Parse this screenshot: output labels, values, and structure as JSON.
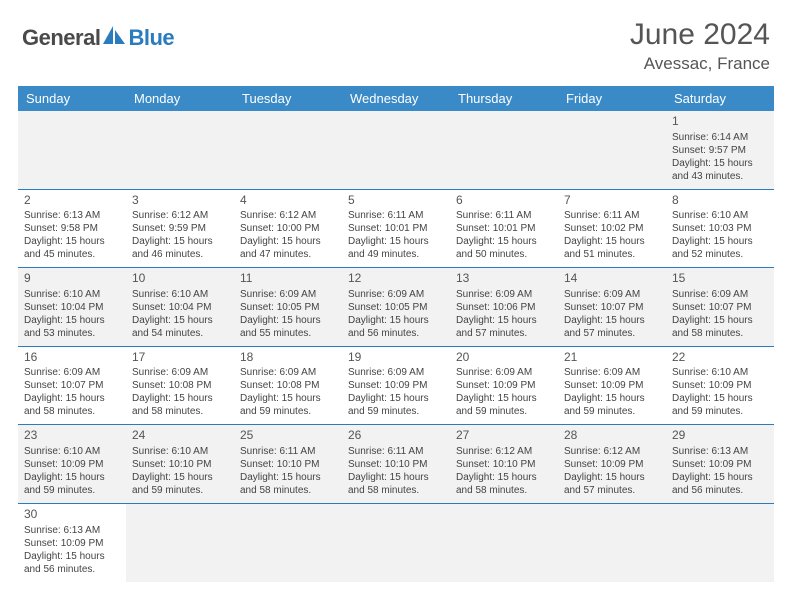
{
  "logo": {
    "text1": "General",
    "text2": "Blue"
  },
  "title": "June 2024",
  "location": "Avessac, France",
  "colors": {
    "header_bg": "#3a8ac8",
    "header_text": "#ffffff",
    "border": "#2b7bbf",
    "shade": "#f2f2f2",
    "logo_blue": "#2b7bbf",
    "logo_gray": "#4a4a4a"
  },
  "weekdays": [
    "Sunday",
    "Monday",
    "Tuesday",
    "Wednesday",
    "Thursday",
    "Friday",
    "Saturday"
  ],
  "weeks": [
    [
      null,
      null,
      null,
      null,
      null,
      null,
      {
        "n": "1",
        "sr": "Sunrise: 6:14 AM",
        "ss": "Sunset: 9:57 PM",
        "d1": "Daylight: 15 hours",
        "d2": "and 43 minutes."
      }
    ],
    [
      {
        "n": "2",
        "sr": "Sunrise: 6:13 AM",
        "ss": "Sunset: 9:58 PM",
        "d1": "Daylight: 15 hours",
        "d2": "and 45 minutes."
      },
      {
        "n": "3",
        "sr": "Sunrise: 6:12 AM",
        "ss": "Sunset: 9:59 PM",
        "d1": "Daylight: 15 hours",
        "d2": "and 46 minutes."
      },
      {
        "n": "4",
        "sr": "Sunrise: 6:12 AM",
        "ss": "Sunset: 10:00 PM",
        "d1": "Daylight: 15 hours",
        "d2": "and 47 minutes."
      },
      {
        "n": "5",
        "sr": "Sunrise: 6:11 AM",
        "ss": "Sunset: 10:01 PM",
        "d1": "Daylight: 15 hours",
        "d2": "and 49 minutes."
      },
      {
        "n": "6",
        "sr": "Sunrise: 6:11 AM",
        "ss": "Sunset: 10:01 PM",
        "d1": "Daylight: 15 hours",
        "d2": "and 50 minutes."
      },
      {
        "n": "7",
        "sr": "Sunrise: 6:11 AM",
        "ss": "Sunset: 10:02 PM",
        "d1": "Daylight: 15 hours",
        "d2": "and 51 minutes."
      },
      {
        "n": "8",
        "sr": "Sunrise: 6:10 AM",
        "ss": "Sunset: 10:03 PM",
        "d1": "Daylight: 15 hours",
        "d2": "and 52 minutes."
      }
    ],
    [
      {
        "n": "9",
        "sr": "Sunrise: 6:10 AM",
        "ss": "Sunset: 10:04 PM",
        "d1": "Daylight: 15 hours",
        "d2": "and 53 minutes."
      },
      {
        "n": "10",
        "sr": "Sunrise: 6:10 AM",
        "ss": "Sunset: 10:04 PM",
        "d1": "Daylight: 15 hours",
        "d2": "and 54 minutes."
      },
      {
        "n": "11",
        "sr": "Sunrise: 6:09 AM",
        "ss": "Sunset: 10:05 PM",
        "d1": "Daylight: 15 hours",
        "d2": "and 55 minutes."
      },
      {
        "n": "12",
        "sr": "Sunrise: 6:09 AM",
        "ss": "Sunset: 10:05 PM",
        "d1": "Daylight: 15 hours",
        "d2": "and 56 minutes."
      },
      {
        "n": "13",
        "sr": "Sunrise: 6:09 AM",
        "ss": "Sunset: 10:06 PM",
        "d1": "Daylight: 15 hours",
        "d2": "and 57 minutes."
      },
      {
        "n": "14",
        "sr": "Sunrise: 6:09 AM",
        "ss": "Sunset: 10:07 PM",
        "d1": "Daylight: 15 hours",
        "d2": "and 57 minutes."
      },
      {
        "n": "15",
        "sr": "Sunrise: 6:09 AM",
        "ss": "Sunset: 10:07 PM",
        "d1": "Daylight: 15 hours",
        "d2": "and 58 minutes."
      }
    ],
    [
      {
        "n": "16",
        "sr": "Sunrise: 6:09 AM",
        "ss": "Sunset: 10:07 PM",
        "d1": "Daylight: 15 hours",
        "d2": "and 58 minutes."
      },
      {
        "n": "17",
        "sr": "Sunrise: 6:09 AM",
        "ss": "Sunset: 10:08 PM",
        "d1": "Daylight: 15 hours",
        "d2": "and 58 minutes."
      },
      {
        "n": "18",
        "sr": "Sunrise: 6:09 AM",
        "ss": "Sunset: 10:08 PM",
        "d1": "Daylight: 15 hours",
        "d2": "and 59 minutes."
      },
      {
        "n": "19",
        "sr": "Sunrise: 6:09 AM",
        "ss": "Sunset: 10:09 PM",
        "d1": "Daylight: 15 hours",
        "d2": "and 59 minutes."
      },
      {
        "n": "20",
        "sr": "Sunrise: 6:09 AM",
        "ss": "Sunset: 10:09 PM",
        "d1": "Daylight: 15 hours",
        "d2": "and 59 minutes."
      },
      {
        "n": "21",
        "sr": "Sunrise: 6:09 AM",
        "ss": "Sunset: 10:09 PM",
        "d1": "Daylight: 15 hours",
        "d2": "and 59 minutes."
      },
      {
        "n": "22",
        "sr": "Sunrise: 6:10 AM",
        "ss": "Sunset: 10:09 PM",
        "d1": "Daylight: 15 hours",
        "d2": "and 59 minutes."
      }
    ],
    [
      {
        "n": "23",
        "sr": "Sunrise: 6:10 AM",
        "ss": "Sunset: 10:09 PM",
        "d1": "Daylight: 15 hours",
        "d2": "and 59 minutes."
      },
      {
        "n": "24",
        "sr": "Sunrise: 6:10 AM",
        "ss": "Sunset: 10:10 PM",
        "d1": "Daylight: 15 hours",
        "d2": "and 59 minutes."
      },
      {
        "n": "25",
        "sr": "Sunrise: 6:11 AM",
        "ss": "Sunset: 10:10 PM",
        "d1": "Daylight: 15 hours",
        "d2": "and 58 minutes."
      },
      {
        "n": "26",
        "sr": "Sunrise: 6:11 AM",
        "ss": "Sunset: 10:10 PM",
        "d1": "Daylight: 15 hours",
        "d2": "and 58 minutes."
      },
      {
        "n": "27",
        "sr": "Sunrise: 6:12 AM",
        "ss": "Sunset: 10:10 PM",
        "d1": "Daylight: 15 hours",
        "d2": "and 58 minutes."
      },
      {
        "n": "28",
        "sr": "Sunrise: 6:12 AM",
        "ss": "Sunset: 10:09 PM",
        "d1": "Daylight: 15 hours",
        "d2": "and 57 minutes."
      },
      {
        "n": "29",
        "sr": "Sunrise: 6:13 AM",
        "ss": "Sunset: 10:09 PM",
        "d1": "Daylight: 15 hours",
        "d2": "and 56 minutes."
      }
    ],
    [
      {
        "n": "30",
        "sr": "Sunrise: 6:13 AM",
        "ss": "Sunset: 10:09 PM",
        "d1": "Daylight: 15 hours",
        "d2": "and 56 minutes."
      },
      null,
      null,
      null,
      null,
      null,
      null
    ]
  ]
}
